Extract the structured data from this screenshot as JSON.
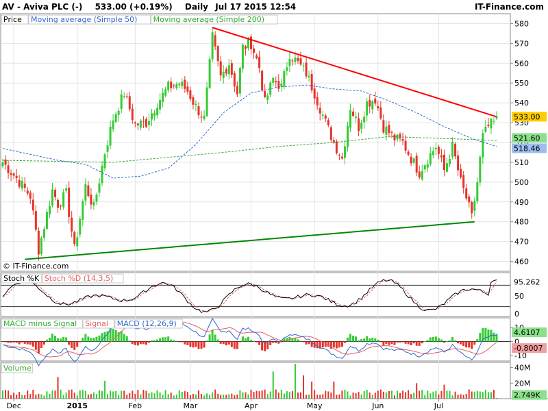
{
  "header": {
    "symbol": "AV - Aviva PLC (-)",
    "last": "533.00 (+0.19%)",
    "period": "Daily",
    "datetime": "Jul 17 2015 12:54",
    "brand": "IT-Finance.com"
  },
  "watermark": "© IT-Finance.com",
  "colors": {
    "up": "#33cc33",
    "down": "#e8322a",
    "ma50": "#3366cc",
    "ma200": "#33aa33",
    "resistance": "#ff0000",
    "support": "#008800",
    "price_badge": "#ffcc00",
    "ma200_badge": "#8be08b",
    "ma50_badge": "#9fbdf0",
    "macd_badge": "#8be08b",
    "signal_badge": "#f0a0a0",
    "vol_badge": "#8be08b"
  },
  "legends": {
    "price": [
      {
        "text": "Price",
        "color": "#000000"
      },
      {
        "text": "Moving average (Simple 50)",
        "color": "#3366cc"
      },
      {
        "text": "Moving average (Simple 200)",
        "color": "#33aa33"
      }
    ],
    "stoch": [
      {
        "text": "Stoch %K",
        "color": "#000000"
      },
      {
        "text": "Stoch %D (14,3,5)",
        "color": "#e06060"
      }
    ],
    "macd": [
      {
        "text": "MACD minus Signal",
        "color": "#33aa33"
      },
      {
        "text": "Signal",
        "color": "#e06060"
      },
      {
        "text": "MACD (12,26,9)",
        "color": "#3366cc"
      }
    ],
    "volume": [
      {
        "text": "Volume",
        "color": "#33aa33"
      }
    ]
  },
  "chart_data": {
    "type": "candlestick",
    "months": [
      "Dec",
      "2015",
      "Feb",
      "Mar",
      "Apr",
      "May",
      "Jun",
      "Jul"
    ],
    "price_panel": {
      "ylim": [
        455,
        585
      ],
      "y_ticks": [
        460,
        470,
        480,
        490,
        500,
        510,
        520,
        530,
        540,
        550,
        560,
        570,
        580
      ],
      "anchors": [
        [
          0,
          510
        ],
        [
          5,
          502
        ],
        [
          10,
          493
        ],
        [
          13,
          466
        ],
        [
          18,
          496
        ],
        [
          20,
          489
        ],
        [
          23,
          494
        ],
        [
          26,
          466
        ],
        [
          30,
          498
        ],
        [
          33,
          487
        ],
        [
          37,
          515
        ],
        [
          40,
          532
        ],
        [
          44,
          545
        ],
        [
          48,
          529
        ],
        [
          52,
          530
        ],
        [
          56,
          540
        ],
        [
          60,
          548
        ],
        [
          64,
          550
        ],
        [
          67,
          546
        ],
        [
          70,
          538
        ],
        [
          73,
          532
        ],
        [
          76,
          573
        ],
        [
          79,
          553
        ],
        [
          82,
          560
        ],
        [
          85,
          545
        ],
        [
          87,
          568
        ],
        [
          90,
          570
        ],
        [
          93,
          558
        ],
        [
          95,
          540
        ],
        [
          98,
          552
        ],
        [
          101,
          548
        ],
        [
          104,
          565
        ],
        [
          107,
          560
        ],
        [
          110,
          555
        ],
        [
          113,
          545
        ],
        [
          117,
          530
        ],
        [
          120,
          520
        ],
        [
          123,
          512
        ],
        [
          126,
          538
        ],
        [
          129,
          528
        ],
        [
          132,
          540
        ],
        [
          135,
          542
        ],
        [
          138,
          528
        ],
        [
          142,
          522
        ],
        [
          145,
          520
        ],
        [
          148,
          512
        ],
        [
          151,
          505
        ],
        [
          154,
          512
        ],
        [
          157,
          518
        ],
        [
          160,
          506
        ],
        [
          163,
          518
        ],
        [
          166,
          500
        ],
        [
          168,
          492
        ],
        [
          170,
          482
        ],
        [
          172,
          500
        ],
        [
          174,
          523
        ],
        [
          176,
          528
        ],
        [
          178,
          530
        ],
        [
          179,
          533
        ]
      ],
      "last_price": 533.0,
      "ma200_last": 521.6,
      "ma50_last": 518.46,
      "ma50_anchors": [
        [
          0,
          517
        ],
        [
          10,
          514
        ],
        [
          20,
          511
        ],
        [
          30,
          509
        ],
        [
          40,
          502
        ],
        [
          50,
          503
        ],
        [
          60,
          507
        ],
        [
          70,
          519
        ],
        [
          80,
          535
        ],
        [
          90,
          545
        ],
        [
          100,
          548
        ],
        [
          110,
          549
        ],
        [
          120,
          547
        ],
        [
          130,
          546
        ],
        [
          140,
          541
        ],
        [
          150,
          535
        ],
        [
          160,
          528
        ],
        [
          170,
          522
        ],
        [
          179,
          518
        ]
      ],
      "ma200_anchors": [
        [
          0,
          511
        ],
        [
          40,
          510
        ],
        [
          80,
          515
        ],
        [
          100,
          518
        ],
        [
          120,
          520
        ],
        [
          140,
          523
        ],
        [
          160,
          522
        ],
        [
          179,
          521
        ]
      ],
      "resistance": {
        "from": [
          76,
          578
        ],
        "to": [
          179,
          533
        ]
      },
      "support": {
        "from": [
          13,
          461
        ],
        "to": [
          171,
          480
        ]
      },
      "labels": {
        "last": "533.00",
        "ma200": "521.60",
        "ma50": "518.46"
      }
    },
    "stoch_panel": {
      "ylim": [
        0,
        100
      ],
      "y_ticks": [
        0,
        50
      ],
      "bands": [
        20,
        80
      ],
      "last_value": 95.262,
      "label": "95.262"
    },
    "macd_panel": {
      "ylim": [
        -14,
        14
      ],
      "y_ticks": [
        -10,
        0,
        10
      ],
      "macd_last": 4.6107,
      "signal_last": -0.8007,
      "macd_label": "4.6107",
      "signal_label": "-0.8007"
    },
    "volume_panel": {
      "ylim": [
        0,
        45
      ],
      "y_ticks_labels": [
        "40M",
        "20M"
      ],
      "y_ticks": [
        40,
        20
      ],
      "last_label": "2.749K"
    },
    "volume_spikes": [
      [
        20,
        28
      ],
      [
        37,
        23
      ],
      [
        98,
        35
      ],
      [
        106,
        48
      ],
      [
        109,
        30
      ],
      [
        112,
        22
      ],
      [
        120,
        22
      ],
      [
        150,
        20
      ],
      [
        160,
        18
      ]
    ]
  }
}
